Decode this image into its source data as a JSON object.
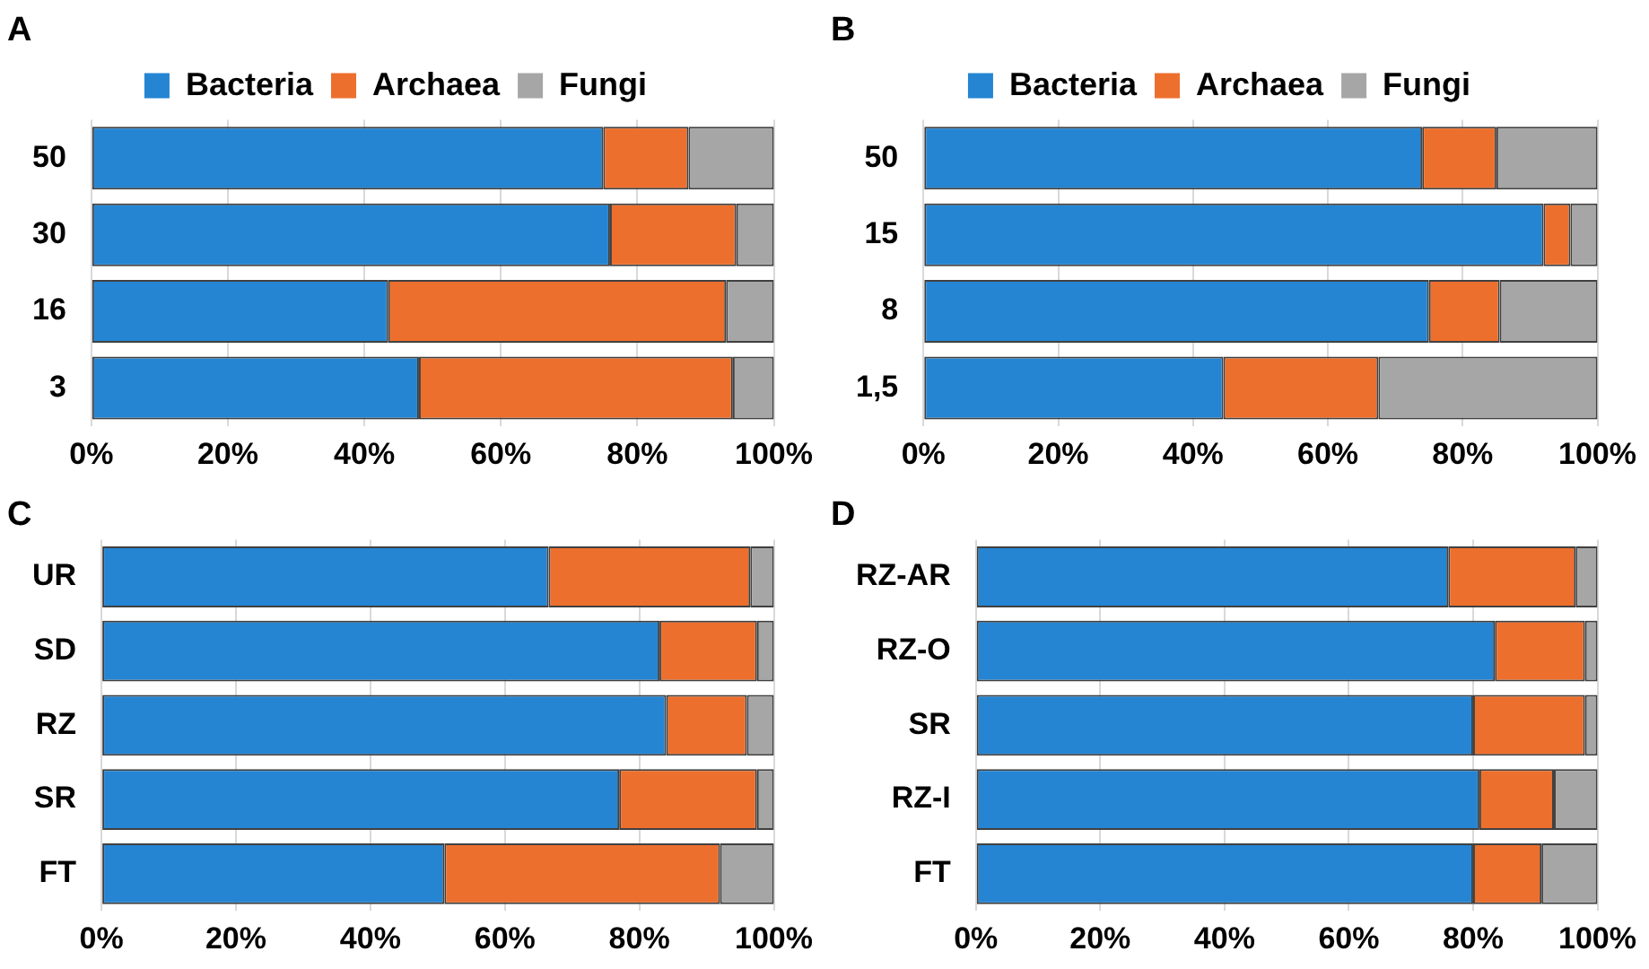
{
  "chart_data": [
    {
      "type": "bar",
      "title": "A",
      "orientation": "horizontal",
      "stacked": true,
      "categories": [
        "50",
        "30",
        "16",
        "3"
      ],
      "series": [
        {
          "name": "Bacteria",
          "color": "#2585d3",
          "values": [
            75,
            76,
            43.5,
            48
          ]
        },
        {
          "name": "Archaea",
          "color": "#ed6f2d",
          "values": [
            12.5,
            18.5,
            49.5,
            46
          ]
        },
        {
          "name": "Fungi",
          "color": "#a6a6a6",
          "values": [
            12.5,
            5.5,
            7,
            6
          ]
        }
      ],
      "xlim": [
        0,
        100
      ],
      "xticks": [
        {
          "value": 0,
          "label": "0%"
        },
        {
          "value": 20,
          "label": "20%"
        },
        {
          "value": 40,
          "label": "40%"
        },
        {
          "value": 60,
          "label": "60%"
        },
        {
          "value": 80,
          "label": "80%"
        },
        {
          "value": 100,
          "label": "100%"
        }
      ],
      "grid": "x",
      "legend": "top"
    },
    {
      "type": "bar",
      "title": "B",
      "orientation": "horizontal",
      "stacked": true,
      "categories": [
        "50",
        "15",
        "8",
        "1,5"
      ],
      "series": [
        {
          "name": "Bacteria",
          "color": "#2585d3",
          "values": [
            74,
            92,
            75,
            44.5
          ]
        },
        {
          "name": "Archaea",
          "color": "#ed6f2d",
          "values": [
            11,
            4,
            10.5,
            23
          ]
        },
        {
          "name": "Fungi",
          "color": "#a6a6a6",
          "values": [
            15,
            4,
            14.5,
            32.5
          ]
        }
      ],
      "xlim": [
        0,
        100
      ],
      "xticks": [
        {
          "value": 0,
          "label": "0%"
        },
        {
          "value": 20,
          "label": "20%"
        },
        {
          "value": 40,
          "label": "40%"
        },
        {
          "value": 60,
          "label": "60%"
        },
        {
          "value": 80,
          "label": "80%"
        },
        {
          "value": 100,
          "label": "100%"
        }
      ],
      "grid": "x",
      "legend": "top"
    },
    {
      "type": "bar",
      "title": "C",
      "orientation": "horizontal",
      "stacked": true,
      "categories": [
        "UR",
        "SD",
        "RZ",
        "SR",
        "FT"
      ],
      "series": [
        {
          "color": "#2585d3",
          "values": [
            66.5,
            83,
            84,
            77,
            51
          ]
        },
        {
          "color": "#ed6f2d",
          "values": [
            30,
            14.5,
            12,
            20.5,
            41
          ]
        },
        {
          "color": "#a6a6a6",
          "values": [
            3.5,
            2.5,
            4,
            2.5,
            8
          ]
        }
      ],
      "xlim": [
        0,
        100
      ],
      "xticks": [
        {
          "value": 0,
          "label": "0%"
        },
        {
          "value": 20,
          "label": "20%"
        },
        {
          "value": 40,
          "label": "40%"
        },
        {
          "value": 60,
          "label": "60%"
        },
        {
          "value": 80,
          "label": "80%"
        },
        {
          "value": 100,
          "label": "100%"
        }
      ],
      "grid": "x"
    },
    {
      "type": "bar",
      "title": "D",
      "orientation": "horizontal",
      "stacked": true,
      "categories": [
        "RZ-AR",
        "RZ-O",
        "SR",
        "RZ-I",
        "FT"
      ],
      "series": [
        {
          "color": "#2585d3",
          "values": [
            76,
            83.5,
            80,
            81,
            80
          ]
        },
        {
          "color": "#ed6f2d",
          "values": [
            20.5,
            14.5,
            18,
            12,
            11
          ]
        },
        {
          "color": "#a6a6a6",
          "values": [
            3.5,
            2,
            2,
            7,
            9
          ]
        }
      ],
      "xlim": [
        0,
        100
      ],
      "xticks": [
        {
          "value": 0,
          "label": "0%"
        },
        {
          "value": 20,
          "label": "20%"
        },
        {
          "value": 40,
          "label": "40%"
        },
        {
          "value": 60,
          "label": "60%"
        },
        {
          "value": 80,
          "label": "80%"
        },
        {
          "value": 100,
          "label": "100%"
        }
      ],
      "grid": "x"
    }
  ]
}
